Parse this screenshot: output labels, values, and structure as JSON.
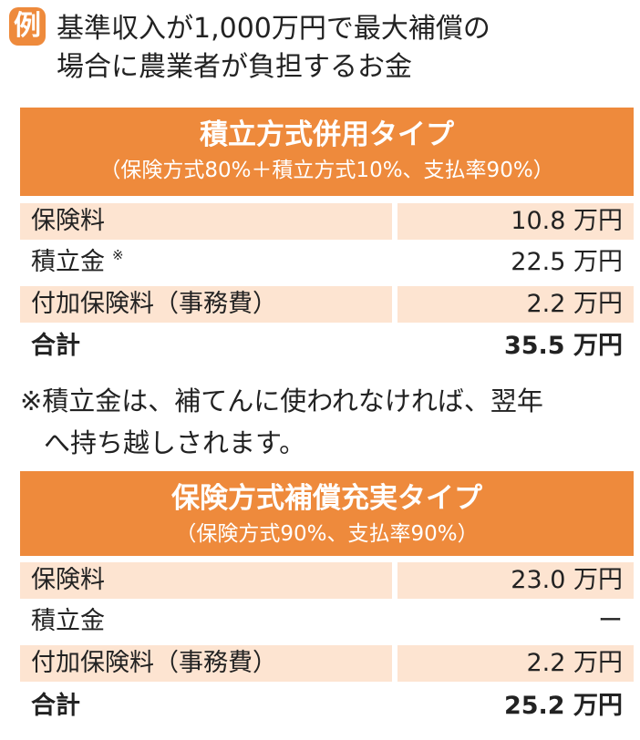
{
  "header": {
    "badge": "例",
    "lines": [
      "基準収入が1,000万円で最大補償の",
      "場合に農業者が負担するお金"
    ]
  },
  "tables": [
    {
      "title": "積立方式併用タイプ",
      "subtitle": "（保険方式80%＋積立方式10%、支払率90%）",
      "rows": [
        {
          "label": "保険料",
          "value": "10.8 万円"
        },
        {
          "label": "積立金",
          "note": "※",
          "value": "22.5 万円"
        },
        {
          "label": "付加保険料（事務費）",
          "value": "2.2 万円"
        },
        {
          "label": "合計",
          "value": "35.5 万円"
        }
      ]
    },
    {
      "title": "保険方式補償充実タイプ",
      "subtitle": "（保険方式90%、支払率90%）",
      "rows": [
        {
          "label": "保険料",
          "value": "23.0 万円"
        },
        {
          "label": "積立金",
          "value": "ー"
        },
        {
          "label": "付加保険料（事務費）",
          "value": "2.2 万円"
        },
        {
          "label": "合計",
          "value": "25.2 万円"
        }
      ]
    }
  ],
  "footnote": [
    "※積立金は、補てんに使われなければ、翌年",
    "へ持ち越しされます。"
  ]
}
